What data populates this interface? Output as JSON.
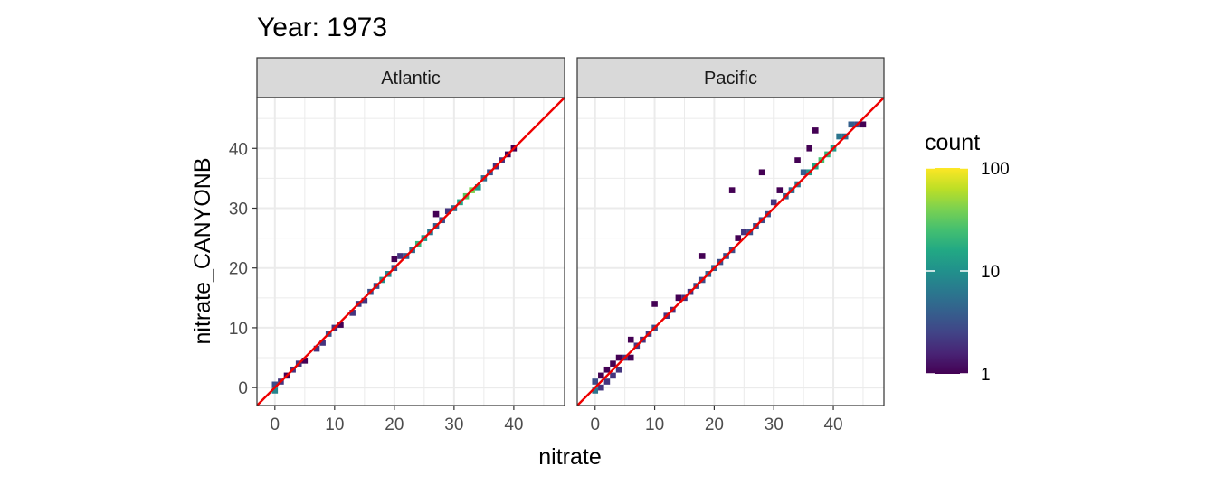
{
  "chart_data": {
    "type": "heatmap",
    "title": "Year: 1973",
    "xlabel": "nitrate",
    "ylabel": "nitrate_CANYONB",
    "xlim": [
      -3,
      48.5
    ],
    "ylim": [
      -3,
      48.5
    ],
    "x_ticks": [
      0,
      10,
      20,
      30,
      40
    ],
    "y_ticks": [
      0,
      10,
      20,
      30,
      40
    ],
    "grid": true,
    "legend": {
      "title": "count",
      "position": "right",
      "scale": "log10",
      "range": [
        1,
        100
      ],
      "breaks": [
        1,
        10,
        100
      ],
      "break_labels": [
        "1",
        "10",
        "100"
      ],
      "colors": [
        "#440154",
        "#482475",
        "#414487",
        "#355f8d",
        "#2a788e",
        "#21918c",
        "#22a884",
        "#44bf70",
        "#7ad151",
        "#bddf26",
        "#fde725"
      ]
    },
    "reference_line": {
      "slope": 1,
      "intercept": 0,
      "color": "#ee0000"
    },
    "bin_width": 1,
    "panels": [
      {
        "name": "Atlantic",
        "bins": [
          [
            0,
            -0.5,
            8
          ],
          [
            0,
            0.5,
            3
          ],
          [
            1,
            1,
            2
          ],
          [
            2,
            2,
            1
          ],
          [
            3,
            3,
            2
          ],
          [
            4,
            4,
            2
          ],
          [
            5,
            4.5,
            1
          ],
          [
            7,
            6.5,
            2
          ],
          [
            8,
            7.5,
            2
          ],
          [
            9,
            9,
            3
          ],
          [
            10,
            10,
            2
          ],
          [
            11,
            10.5,
            1
          ],
          [
            13,
            12.5,
            2
          ],
          [
            14,
            14,
            2
          ],
          [
            15,
            14.5,
            2
          ],
          [
            16,
            16,
            3
          ],
          [
            17,
            17,
            3
          ],
          [
            18,
            18,
            10
          ],
          [
            19,
            19,
            8
          ],
          [
            20,
            20,
            3
          ],
          [
            20,
            21.5,
            1
          ],
          [
            21,
            22,
            2
          ],
          [
            22,
            22,
            4
          ],
          [
            23,
            23,
            5
          ],
          [
            24,
            24,
            20
          ],
          [
            25,
            25,
            12
          ],
          [
            26,
            26,
            6
          ],
          [
            27,
            27,
            4
          ],
          [
            27,
            29,
            1
          ],
          [
            28,
            28,
            3
          ],
          [
            29,
            29.5,
            2
          ],
          [
            30,
            30,
            5
          ],
          [
            31,
            31,
            15
          ],
          [
            32,
            32,
            30
          ],
          [
            33,
            33,
            40
          ],
          [
            34,
            33.5,
            12
          ],
          [
            35,
            35,
            5
          ],
          [
            36,
            36,
            3
          ],
          [
            37,
            37,
            2
          ],
          [
            38,
            38,
            2
          ],
          [
            39,
            39,
            1
          ],
          [
            40,
            40,
            1
          ]
        ]
      },
      {
        "name": "Pacific",
        "bins": [
          [
            0,
            -0.5,
            6
          ],
          [
            0,
            1,
            3
          ],
          [
            1,
            0,
            2
          ],
          [
            1,
            2,
            1
          ],
          [
            2,
            1,
            2
          ],
          [
            2,
            3,
            1
          ],
          [
            3,
            2,
            2
          ],
          [
            3,
            4,
            1
          ],
          [
            4,
            3,
            2
          ],
          [
            4,
            5,
            1
          ],
          [
            5,
            5,
            2
          ],
          [
            6,
            5,
            1
          ],
          [
            6,
            8,
            1
          ],
          [
            7,
            7,
            2
          ],
          [
            8,
            8,
            2
          ],
          [
            9,
            9,
            2
          ],
          [
            10,
            10,
            3
          ],
          [
            10,
            14,
            1
          ],
          [
            12,
            12,
            2
          ],
          [
            13,
            13,
            2
          ],
          [
            14,
            15,
            1
          ],
          [
            15,
            15,
            2
          ],
          [
            16,
            16,
            2
          ],
          [
            17,
            17,
            3
          ],
          [
            18,
            18,
            3
          ],
          [
            18,
            22,
            1
          ],
          [
            19,
            19,
            4
          ],
          [
            20,
            20,
            4
          ],
          [
            21,
            21,
            3
          ],
          [
            22,
            22,
            3
          ],
          [
            23,
            23,
            3
          ],
          [
            24,
            25,
            1
          ],
          [
            25,
            26,
            2
          ],
          [
            26,
            26,
            3
          ],
          [
            27,
            27,
            3
          ],
          [
            28,
            28,
            3
          ],
          [
            29,
            29,
            3
          ],
          [
            30,
            31,
            2
          ],
          [
            31,
            33,
            1
          ],
          [
            32,
            32,
            4
          ],
          [
            33,
            33,
            5
          ],
          [
            34,
            34,
            6
          ],
          [
            35,
            36,
            4
          ],
          [
            36,
            36,
            12
          ],
          [
            37,
            37,
            15
          ],
          [
            38,
            38,
            25
          ],
          [
            39,
            39,
            20
          ],
          [
            40,
            40,
            12
          ],
          [
            41,
            42,
            6
          ],
          [
            42,
            42,
            5
          ],
          [
            43,
            44,
            4
          ],
          [
            44,
            44,
            3
          ],
          [
            45,
            44,
            1
          ],
          [
            36,
            40,
            1
          ],
          [
            37,
            43,
            1
          ],
          [
            28,
            36,
            1
          ],
          [
            23,
            33,
            1
          ],
          [
            34,
            38,
            1
          ]
        ]
      }
    ]
  }
}
